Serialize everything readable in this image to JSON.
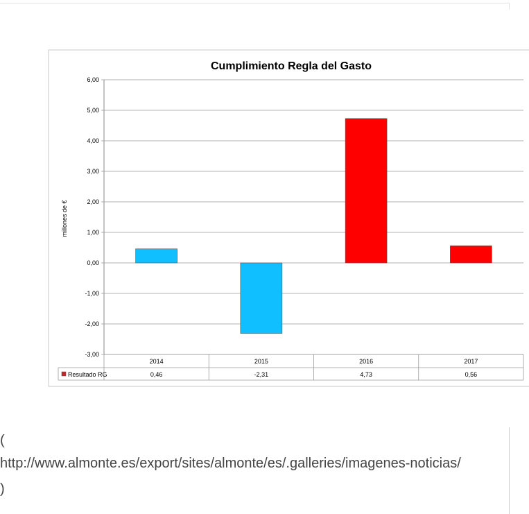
{
  "chart_data": {
    "type": "bar",
    "title": "Cumplimiento Regla del Gasto",
    "ylabel": "millones de €",
    "xlabel": "",
    "categories": [
      "2014",
      "2015",
      "2016",
      "2017"
    ],
    "series": [
      {
        "name": "Resultado RG",
        "values": [
          0.46,
          -2.31,
          4.73,
          0.56
        ],
        "value_labels": [
          "0,46",
          "-2,31",
          "4,73",
          "0,56"
        ]
      }
    ],
    "bar_colors": [
      "#0fbfff",
      "#0fbfff",
      "#ff0000",
      "#ff0000"
    ],
    "legend_color": "#c0282c",
    "ylim": [
      -3,
      6
    ],
    "yticks": [
      6,
      5,
      4,
      3,
      2,
      1,
      0,
      -1,
      -2,
      -3
    ],
    "ytick_labels": [
      "6,00",
      "5,00",
      "4,00",
      "3,00",
      "2,00",
      "1,00",
      "0,00",
      "-1,00",
      "-2,00",
      "-3,00"
    ],
    "grid": true,
    "data_table": true
  },
  "caption": {
    "open": "(",
    "url": "http://www.almonte.es/export/sites/almonte/es/.galleries/imagenes-noticias/",
    "close": ")"
  }
}
